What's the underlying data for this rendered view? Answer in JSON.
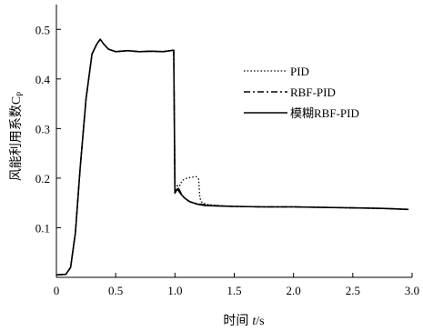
{
  "chart_data": {
    "type": "line",
    "xlabel_main": "时间",
    "xlabel_var": "t",
    "xlabel_unit": "/s",
    "ylabel_main": "风能利用系数C",
    "ylabel_sub": "P",
    "xlim": [
      0,
      3.0
    ],
    "ylim": [
      0,
      0.55
    ],
    "xticks": [
      0,
      0.5,
      1.0,
      1.5,
      2.0,
      2.5,
      3.0
    ],
    "xtick_labels": [
      "0",
      "0.5",
      "1.0",
      "1.5",
      "2.0",
      "2.5",
      "3.0"
    ],
    "yticks": [
      0.1,
      0.2,
      0.3,
      0.4,
      0.5
    ],
    "ytick_labels": [
      "0.1",
      "0.2",
      "0.3",
      "0.4",
      "0.5"
    ],
    "legend_position": "right-middle",
    "series": [
      {
        "name": "PID",
        "style": "dotted",
        "x": [
          0,
          0.08,
          0.12,
          0.16,
          0.2,
          0.25,
          0.3,
          0.34,
          0.37,
          0.4,
          0.44,
          0.5,
          0.6,
          0.7,
          0.8,
          0.9,
          0.99,
          1.0,
          1.01,
          1.03,
          1.06,
          1.1,
          1.14,
          1.18,
          1.2,
          1.21,
          1.23,
          1.27,
          1.35,
          1.5,
          1.75,
          2.0,
          2.25,
          2.5,
          2.75,
          2.97
        ],
        "y": [
          0.005,
          0.006,
          0.02,
          0.09,
          0.22,
          0.36,
          0.45,
          0.47,
          0.48,
          0.47,
          0.46,
          0.455,
          0.457,
          0.455,
          0.456,
          0.455,
          0.458,
          0.18,
          0.175,
          0.18,
          0.195,
          0.2,
          0.202,
          0.203,
          0.198,
          0.16,
          0.15,
          0.147,
          0.145,
          0.143,
          0.142,
          0.142,
          0.141,
          0.14,
          0.139,
          0.137
        ]
      },
      {
        "name": "RBF-PID",
        "style": "dashdot",
        "x": [
          0,
          0.08,
          0.12,
          0.16,
          0.2,
          0.25,
          0.3,
          0.34,
          0.37,
          0.4,
          0.44,
          0.5,
          0.6,
          0.7,
          0.8,
          0.9,
          0.99,
          1.0,
          1.02,
          1.04,
          1.06,
          1.09,
          1.13,
          1.2,
          1.3,
          1.5,
          1.75,
          2.0,
          2.25,
          2.5,
          2.75,
          2.97
        ],
        "y": [
          0.005,
          0.006,
          0.02,
          0.09,
          0.22,
          0.36,
          0.45,
          0.47,
          0.48,
          0.47,
          0.46,
          0.455,
          0.457,
          0.455,
          0.456,
          0.455,
          0.458,
          0.175,
          0.185,
          0.175,
          0.165,
          0.158,
          0.152,
          0.148,
          0.145,
          0.143,
          0.142,
          0.142,
          0.141,
          0.14,
          0.139,
          0.137
        ]
      },
      {
        "name": "模糊RBF-PID",
        "style": "solid",
        "x": [
          0,
          0.08,
          0.12,
          0.16,
          0.2,
          0.25,
          0.3,
          0.34,
          0.37,
          0.4,
          0.44,
          0.5,
          0.6,
          0.7,
          0.8,
          0.9,
          0.99,
          1.0,
          1.02,
          1.05,
          1.08,
          1.12,
          1.18,
          1.25,
          1.35,
          1.5,
          1.75,
          2.0,
          2.25,
          2.5,
          2.75,
          2.97
        ],
        "y": [
          0.005,
          0.006,
          0.02,
          0.09,
          0.22,
          0.36,
          0.45,
          0.47,
          0.48,
          0.47,
          0.46,
          0.455,
          0.457,
          0.455,
          0.456,
          0.455,
          0.458,
          0.17,
          0.178,
          0.168,
          0.16,
          0.153,
          0.148,
          0.145,
          0.144,
          0.143,
          0.142,
          0.142,
          0.141,
          0.14,
          0.139,
          0.137
        ]
      }
    ]
  }
}
